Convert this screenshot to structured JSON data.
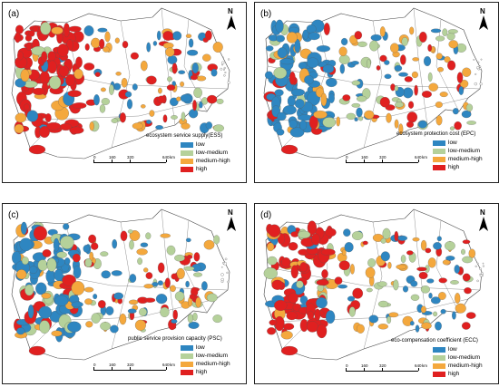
{
  "colors": {
    "low": "#2e86c1",
    "low_medium": "#b5d19a",
    "medium_high": "#f4a83d",
    "high": "#e02020"
  },
  "legend_labels": [
    "low",
    "low-medium",
    "medium-high",
    "high"
  ],
  "north_label": "N",
  "scale": {
    "ticks": [
      "0",
      "160",
      "320",
      "640",
      "km"
    ]
  },
  "panels": [
    {
      "label": "(a)",
      "title": "ecosystem service supply(ESS)"
    },
    {
      "label": "(b)",
      "title": "ecosystem protection cost (EPC)"
    },
    {
      "label": "(c)",
      "title": "public service provision capacity (PSC)"
    },
    {
      "label": "(d)",
      "title": "eco-compensation coefficient (ECC)"
    }
  ]
}
